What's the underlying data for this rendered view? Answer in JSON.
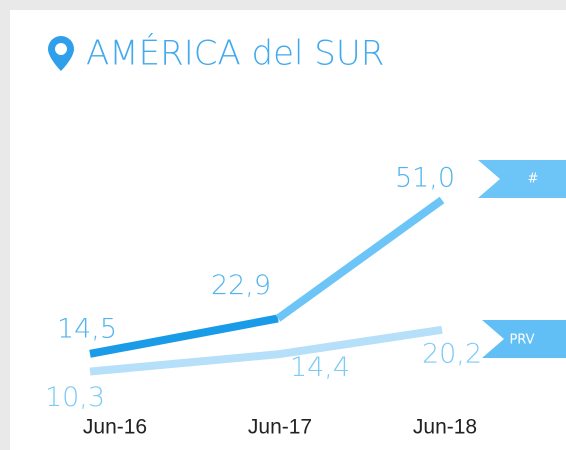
{
  "chart_data": {
    "type": "line",
    "title": "AMÉRICA del SUR",
    "categories": [
      "Jun-16",
      "Jun-17",
      "Jun-18"
    ],
    "series": [
      {
        "name": "#",
        "color": "#6cc4f7",
        "segment_colors": [
          "#1a9be8",
          "#6cc4f7"
        ],
        "values": [
          14.5,
          22.9,
          51.0
        ],
        "value_labels": [
          "14,5",
          "22,9",
          "51,0"
        ]
      },
      {
        "name": "PRV",
        "color": "#b6dff9",
        "values": [
          10.3,
          14.4,
          20.2
        ],
        "value_labels": [
          "10,3",
          "14,4",
          "20,2"
        ]
      }
    ],
    "ylim": [
      0,
      60
    ]
  }
}
